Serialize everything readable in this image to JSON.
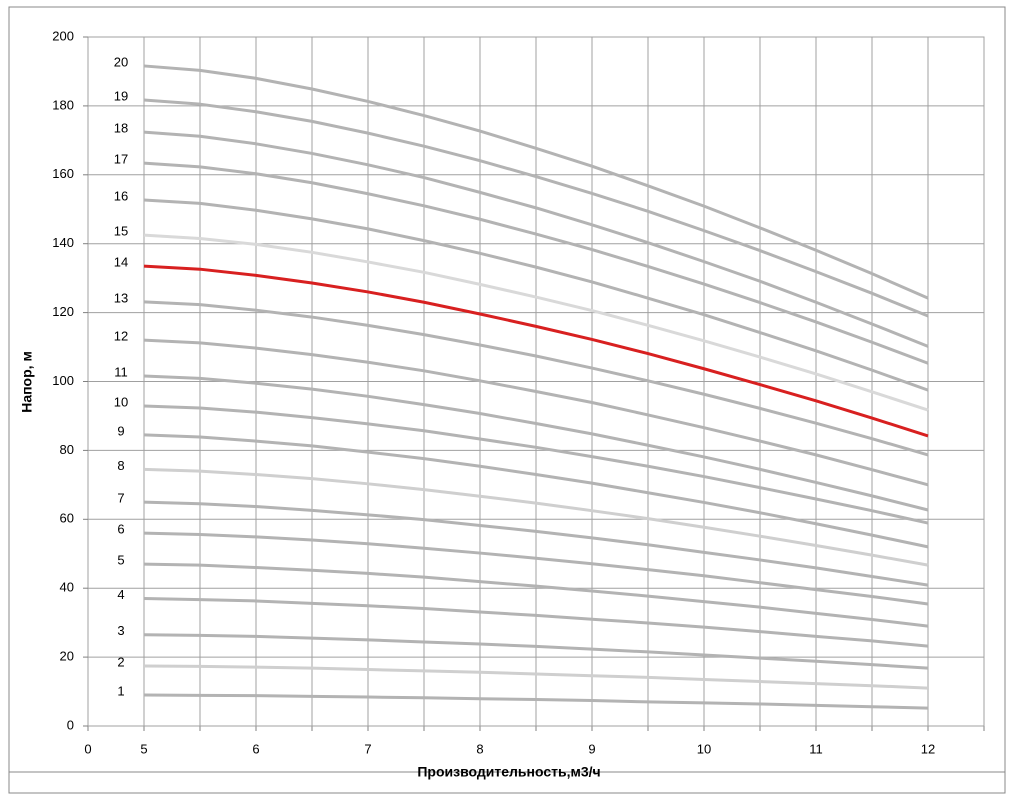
{
  "chart_data": {
    "type": "line",
    "x_label": "Производительность,м3/ч",
    "y_label": "Напор, м",
    "categories": [
      "0",
      "5",
      null,
      "6",
      null,
      "7",
      null,
      "8",
      null,
      "9",
      null,
      "10",
      null,
      "11",
      null,
      "12"
    ],
    "ylim": [
      0,
      200
    ],
    "yticks": [
      0,
      20,
      40,
      60,
      80,
      100,
      120,
      140,
      160,
      180,
      200
    ],
    "grid": true,
    "series": [
      {
        "name": "1",
        "color": "#b3b3b3",
        "values": [
          null,
          9.0,
          8.9,
          8.8,
          8.6,
          8.4,
          8.2,
          7.9,
          7.7,
          7.4,
          7.0,
          6.7,
          6.4,
          6.0,
          5.6,
          5.2
        ]
      },
      {
        "name": "2",
        "color": "#cfcfcf",
        "values": [
          null,
          17.4,
          17.3,
          17.1,
          16.8,
          16.4,
          16.0,
          15.6,
          15.1,
          14.6,
          14.1,
          13.5,
          12.9,
          12.3,
          11.7,
          11.0
        ]
      },
      {
        "name": "3",
        "color": "#b3b3b3",
        "values": [
          null,
          26.5,
          26.3,
          26.0,
          25.5,
          25.0,
          24.4,
          23.8,
          23.1,
          22.3,
          21.5,
          20.6,
          19.7,
          18.8,
          17.8,
          16.8
        ]
      },
      {
        "name": "4",
        "color": "#b3b3b3",
        "values": [
          null,
          37.0,
          36.7,
          36.3,
          35.6,
          34.9,
          34.1,
          33.1,
          32.1,
          31.0,
          29.9,
          28.7,
          27.4,
          26.0,
          24.7,
          23.2
        ]
      },
      {
        "name": "5",
        "color": "#b3b3b3",
        "values": [
          null,
          47.0,
          46.7,
          46.0,
          45.2,
          44.3,
          43.2,
          41.9,
          40.6,
          39.2,
          37.7,
          36.1,
          34.5,
          32.7,
          30.9,
          29.0
        ]
      },
      {
        "name": "6",
        "color": "#b3b3b3",
        "values": [
          null,
          56.0,
          55.6,
          54.9,
          54.0,
          52.9,
          51.6,
          50.2,
          48.7,
          47.1,
          45.4,
          43.6,
          41.6,
          39.6,
          37.6,
          35.4
        ]
      },
      {
        "name": "7",
        "color": "#b3b3b3",
        "values": [
          null,
          65.0,
          64.5,
          63.7,
          62.6,
          61.3,
          59.9,
          58.2,
          56.5,
          54.6,
          52.6,
          50.4,
          48.2,
          45.9,
          43.4,
          40.9
        ]
      },
      {
        "name": "8",
        "color": "#cfcfcf",
        "values": [
          null,
          74.5,
          74.0,
          73.0,
          71.8,
          70.3,
          68.6,
          66.7,
          64.7,
          62.5,
          60.2,
          57.7,
          55.1,
          52.4,
          49.6,
          46.7
        ]
      },
      {
        "name": "9",
        "color": "#b3b3b3",
        "values": [
          null,
          84.5,
          83.9,
          82.7,
          81.3,
          79.5,
          77.6,
          75.4,
          73.0,
          70.5,
          67.7,
          64.9,
          61.9,
          58.7,
          55.4,
          52.0
        ]
      },
      {
        "name": "10",
        "color": "#b3b3b3",
        "values": [
          null,
          92.9,
          92.3,
          91.1,
          89.5,
          87.7,
          85.7,
          83.3,
          80.9,
          78.2,
          75.4,
          72.4,
          69.2,
          65.9,
          62.5,
          58.9
        ]
      },
      {
        "name": "11",
        "color": "#b3b3b3",
        "values": [
          null,
          101.6,
          100.9,
          99.5,
          97.8,
          95.7,
          93.3,
          90.7,
          87.8,
          84.8,
          81.5,
          78.1,
          74.5,
          70.7,
          66.8,
          62.7
        ]
      },
      {
        "name": "12",
        "color": "#b3b3b3",
        "values": [
          null,
          112.0,
          111.2,
          109.7,
          107.8,
          105.6,
          103.1,
          100.2,
          97.1,
          93.9,
          90.3,
          86.6,
          82.7,
          78.7,
          74.4,
          70.0
        ]
      },
      {
        "name": "13",
        "color": "#b3b3b3",
        "values": [
          null,
          123.1,
          122.3,
          120.7,
          118.7,
          116.3,
          113.6,
          110.6,
          107.4,
          103.9,
          100.2,
          96.3,
          92.2,
          87.9,
          83.4,
          78.7
        ]
      },
      {
        "name": "14",
        "color": "#d82020",
        "values": [
          null,
          133.5,
          132.6,
          130.8,
          128.6,
          126.0,
          123.0,
          119.6,
          116.0,
          112.2,
          108.1,
          103.7,
          99.1,
          94.4,
          89.4,
          84.2
        ]
      },
      {
        "name": "15",
        "color": "#d9d9d9",
        "values": [
          null,
          142.5,
          141.5,
          139.8,
          137.5,
          134.7,
          131.7,
          128.2,
          124.5,
          120.6,
          116.3,
          111.8,
          107.1,
          102.2,
          97.0,
          91.7
        ]
      },
      {
        "name": "16",
        "color": "#b3b3b3",
        "values": [
          null,
          152.7,
          151.7,
          149.7,
          147.2,
          144.3,
          140.9,
          137.2,
          133.2,
          128.9,
          124.2,
          119.4,
          114.2,
          108.9,
          103.3,
          97.5
        ]
      },
      {
        "name": "17",
        "color": "#b3b3b3",
        "values": [
          null,
          163.4,
          162.3,
          160.3,
          157.7,
          154.5,
          151.0,
          147.1,
          142.8,
          138.3,
          133.4,
          128.3,
          122.9,
          117.3,
          111.4,
          105.3
        ]
      },
      {
        "name": "18",
        "color": "#b3b3b3",
        "values": [
          null,
          172.4,
          171.2,
          169.0,
          166.2,
          162.9,
          159.2,
          154.9,
          150.4,
          145.5,
          140.3,
          134.8,
          129.1,
          123.0,
          116.7,
          110.2
        ]
      },
      {
        "name": "19",
        "color": "#b3b3b3",
        "values": [
          null,
          181.7,
          180.5,
          178.3,
          175.5,
          172.1,
          168.3,
          164.1,
          159.5,
          154.6,
          149.4,
          143.8,
          138.0,
          131.9,
          125.6,
          119.0
        ]
      },
      {
        "name": "20",
        "color": "#b3b3b3",
        "values": [
          null,
          191.6,
          190.3,
          188.0,
          184.9,
          181.3,
          177.2,
          172.7,
          167.7,
          162.5,
          156.8,
          150.9,
          144.6,
          138.1,
          131.3,
          124.2
        ]
      }
    ]
  }
}
